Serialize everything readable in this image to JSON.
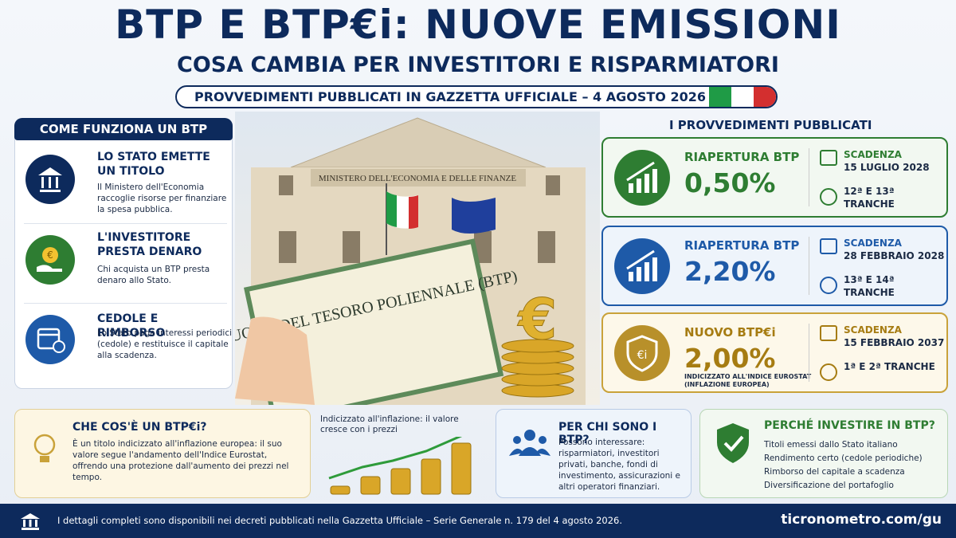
{
  "header": {
    "title": "BTP E BTP€i: NUOVE EMISSIONI",
    "subtitle": "COSA CAMBIA PER INVESTITORI E RISPARMIATORI",
    "banner": "PROVVEDIMENTI PUBBLICATI IN GAZZETTA UFFICIALE – 4 AGOSTO 2026"
  },
  "how_it_works": {
    "title": "COME FUNZIONA UN BTP",
    "steps": [
      {
        "title": "LO STATO EMETTE UN TITOLO",
        "text": "Il Ministero dell'Economia raccoglie risorse per finanziare la spesa pubblica."
      },
      {
        "title": "L'INVESTITORE PRESTA DENARO",
        "text": "Chi acquista un BTP presta denaro allo Stato."
      },
      {
        "title": "CEDOLE E RIMBORSO",
        "text": "Lo Stato paga interessi periodici (cedole) e restituisce il capitale alla scadenza."
      }
    ]
  },
  "image": {
    "building_sign": "MINISTERO DELL'ECONOMIA E DELLE FINANZE",
    "certificate": "BUONO DEL TESORO POLIENNALE (BTP)"
  },
  "provisions": {
    "title": "I PROVVEDIMENTI PUBBLICATI",
    "items": [
      {
        "name": "RIAPERTURA BTP",
        "rate": "0,50%",
        "maturity_label": "SCADENZA",
        "maturity_date": "15 LUGLIO 2028",
        "tranche": "12ª E 13ª TRANCHE"
      },
      {
        "name": "RIAPERTURA BTP",
        "rate": "2,20%",
        "maturity_label": "SCADENZA",
        "maturity_date": "28 FEBBRAIO 2028",
        "tranche": "13ª E 14ª TRANCHE"
      },
      {
        "name": "NUOVO BTP€i",
        "rate": "2,00%",
        "note": "INDICIZZATO ALL'INDICE EUROSTAT (INFLAZIONE EUROPEA)",
        "maturity_label": "SCADENZA",
        "maturity_date": "15 FEBBRAIO 2037",
        "tranche": "1ª E 2ª TRANCHE"
      }
    ]
  },
  "btpei": {
    "title": "CHE COS'È UN BTP€i?",
    "text": "È un titolo indicizzato all'inflazione europea: il suo valore segue l'andamento dell'Indice Eurostat, offrendo una protezione dall'aumento dei prezzi nel tempo."
  },
  "inflation_caption": "Indicizzato all'inflazione: il valore cresce con i prezzi",
  "who": {
    "title": "PER CHI SONO I BTP?",
    "text": "Possono interessare: risparmiatori, investitori privati, banche, fondi di investimento, assicurazioni e altri operatori finanziari."
  },
  "why": {
    "title": "PERCHÉ INVESTIRE IN BTP?",
    "items": [
      "Titoli emessi dallo Stato italiano",
      "Rendimento certo (cedole periodiche)",
      "Rimborso del capitale a scadenza",
      "Diversificazione del portafoglio"
    ]
  },
  "footer": {
    "text": "I dettagli completi sono disponibili nei decreti pubblicati nella Gazzetta Ufficiale – Serie Generale n. 179 del 4 agosto 2026.",
    "url": "ticronometro.com/gu"
  }
}
